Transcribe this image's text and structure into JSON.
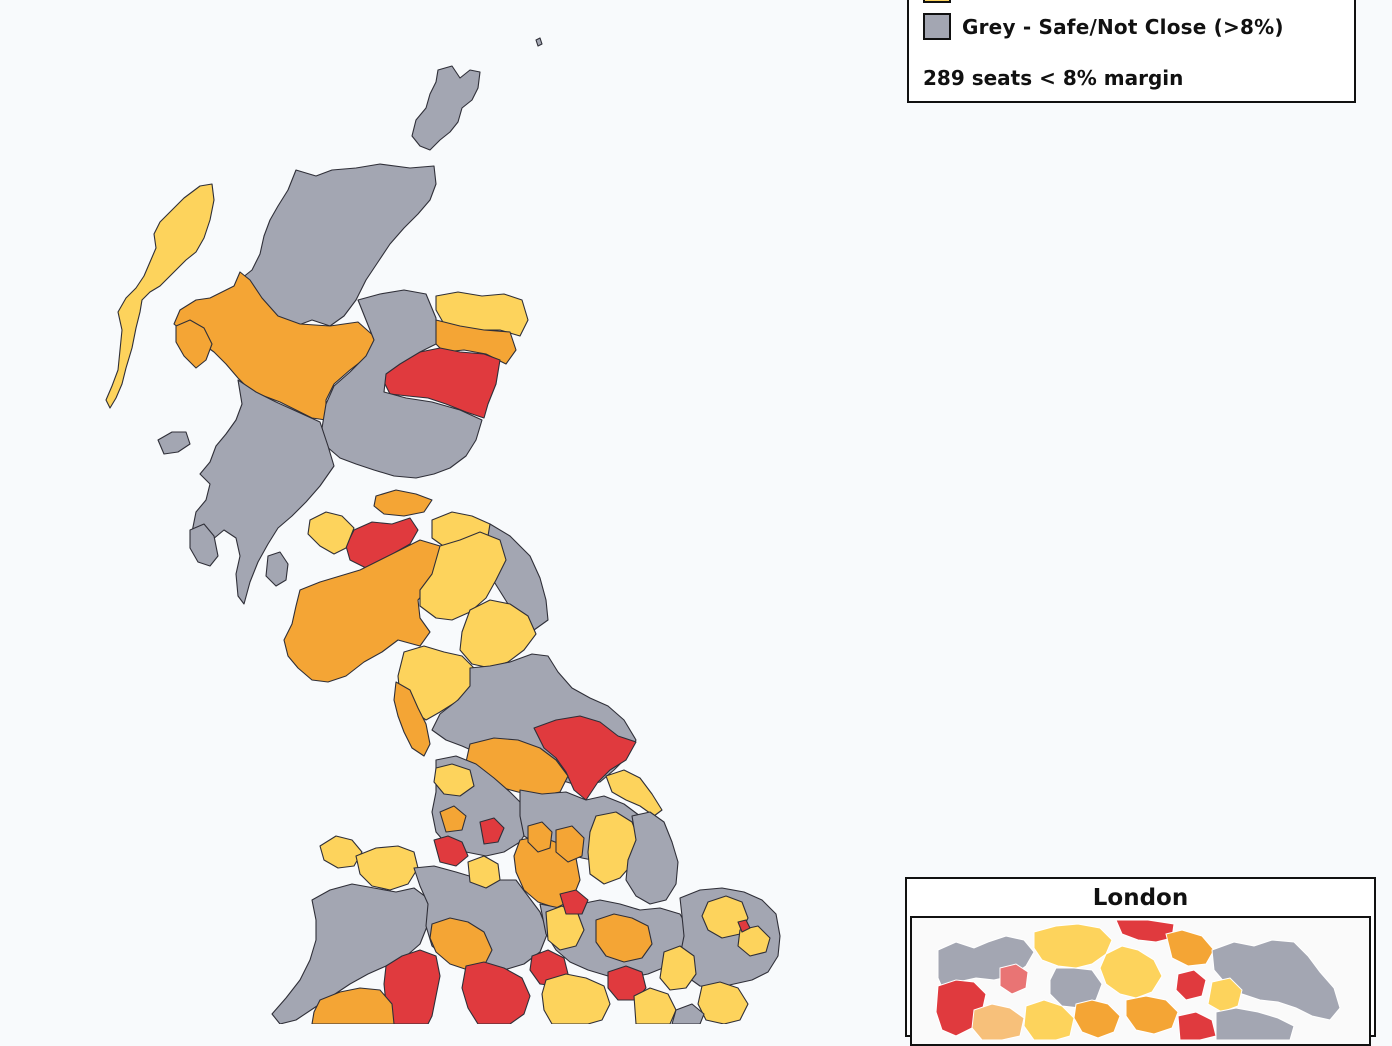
{
  "colors": {
    "very_close": "#e03a3e",
    "close": "#f4a535",
    "marginal": "#fdd35c",
    "safe": "#a3a6b2",
    "light_red": "#e97474",
    "peach": "#f7c07a",
    "background": "#f8fafc"
  },
  "legend": {
    "items": [
      {
        "label": "",
        "color": "#fdd35c"
      },
      {
        "label": "Grey - Safe/Not Close (>8%)",
        "color": "#a3a6b2"
      }
    ],
    "summary": "289 seats < 8% margin"
  },
  "inset": {
    "title": "London"
  }
}
